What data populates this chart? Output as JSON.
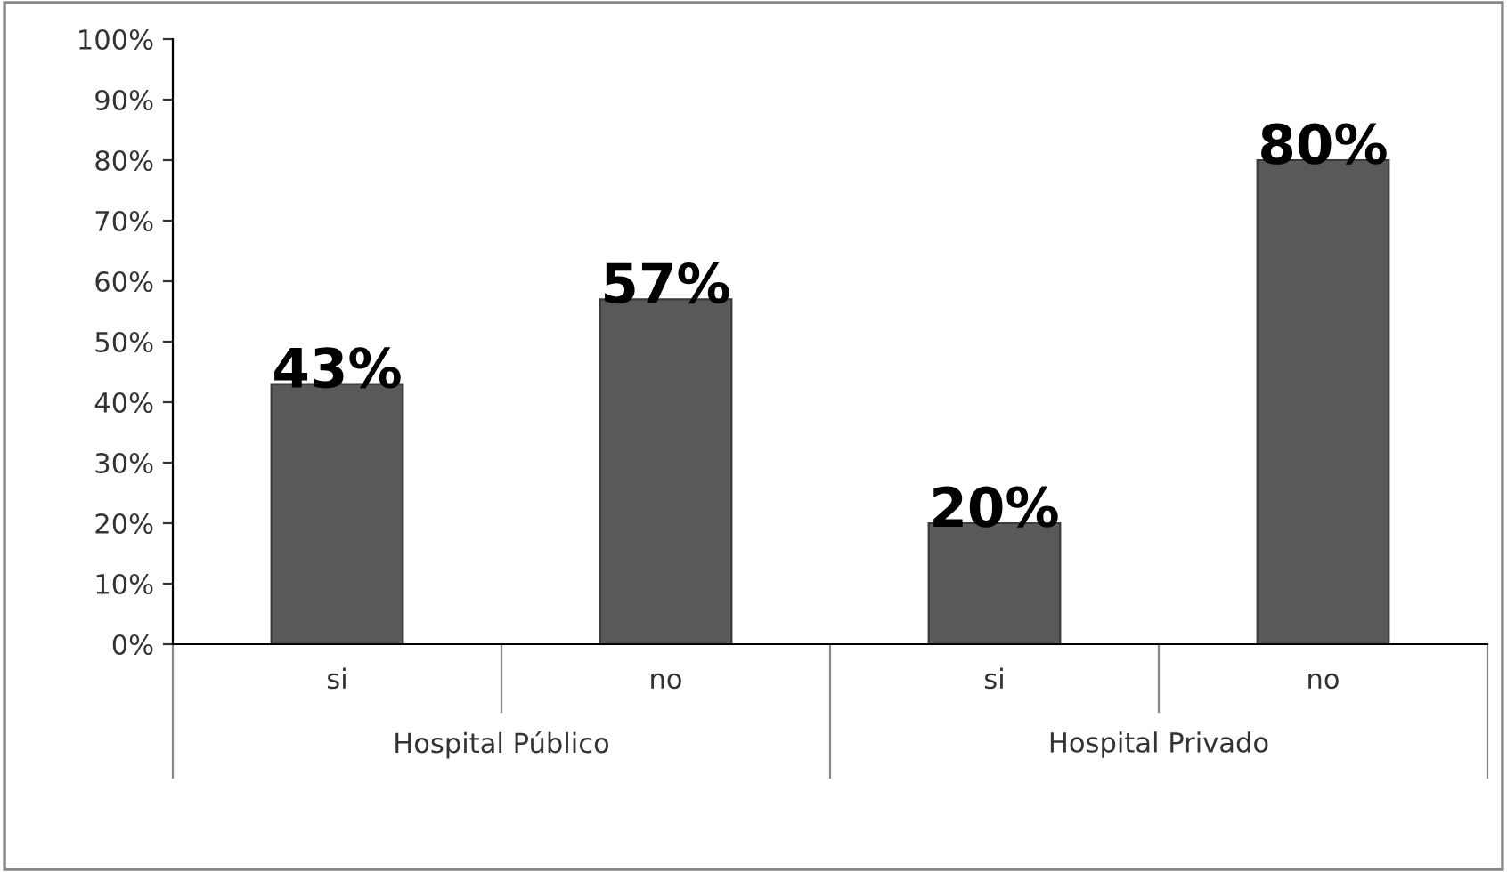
{
  "chart_data": {
    "type": "bar",
    "categories": [
      "si",
      "no",
      "si",
      "no"
    ],
    "values": [
      43,
      57,
      20,
      80
    ],
    "color": "#595959",
    "ylim": [
      0,
      100
    ],
    "yticks": [
      {
        "value": 0,
        "label": "0%"
      },
      {
        "value": 10,
        "label": "10%"
      },
      {
        "value": 20,
        "label": "20%"
      },
      {
        "value": 30,
        "label": "30%"
      },
      {
        "value": 40,
        "label": "40%"
      },
      {
        "value": 50,
        "label": "50%"
      },
      {
        "value": 60,
        "label": "60%"
      },
      {
        "value": 70,
        "label": "70%"
      },
      {
        "value": 80,
        "label": "80%"
      },
      {
        "value": 90,
        "label": "90%"
      },
      {
        "value": 100,
        "label": "100%"
      }
    ],
    "value_labels": [
      "43%",
      "57%",
      "20%",
      "80%"
    ],
    "annotations": [
      "Hospital Público",
      "Hospital Privado"
    ],
    "grid": false,
    "legend": false
  }
}
